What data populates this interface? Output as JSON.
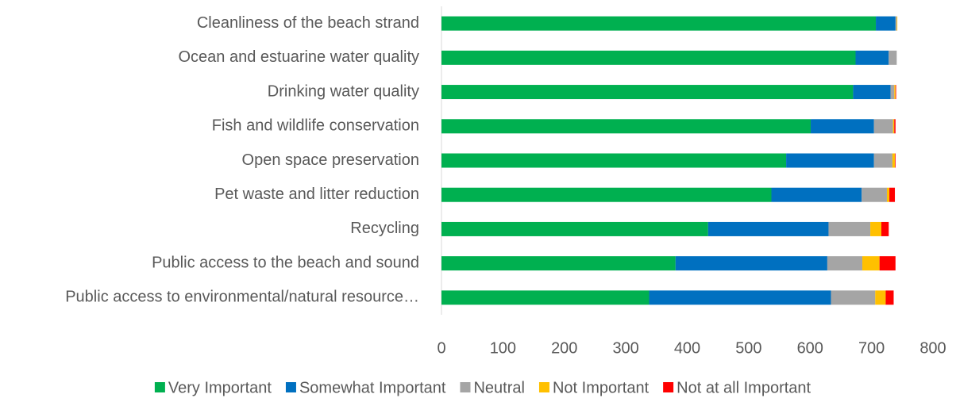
{
  "chart_data": {
    "type": "stacked-bar-horizontal",
    "categories": [
      "Cleanliness of the beach strand",
      "Ocean and estuarine water quality",
      "Drinking water quality",
      "Fish and wildlife conservation",
      "Open space preservation",
      "Pet waste and litter reduction",
      "Recycling",
      "Public access to the beach and sound",
      "Public access to environmental/natural resource…"
    ],
    "series": [
      {
        "name": "Very Important",
        "color": "#00b050",
        "values": [
          707,
          674,
          670,
          601,
          561,
          537,
          434,
          381,
          338
        ]
      },
      {
        "name": "Somewhat Important",
        "color": "#0070c0",
        "values": [
          32,
          54,
          61,
          103,
          143,
          147,
          196,
          247,
          296
        ]
      },
      {
        "name": "Neutral",
        "color": "#a5a5a5",
        "values": [
          2,
          13,
          6,
          31,
          30,
          41,
          68,
          57,
          72
        ]
      },
      {
        "name": "Not Important",
        "color": "#ffc000",
        "values": [
          1,
          0,
          2,
          2,
          4,
          4,
          18,
          28,
          17
        ]
      },
      {
        "name": "Not at all Important",
        "color": "#ff0000",
        "values": [
          0,
          0,
          1,
          2,
          1,
          9,
          12,
          26,
          13
        ]
      }
    ],
    "xlim": [
      0,
      800
    ],
    "xticks": [
      0,
      100,
      200,
      300,
      400,
      500,
      600,
      700,
      800
    ],
    "grid": false,
    "legend": "bottom"
  }
}
